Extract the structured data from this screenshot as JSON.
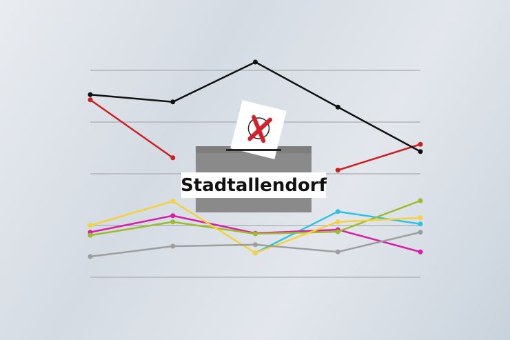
{
  "chart_data": {
    "type": "line",
    "x": [
      1,
      2,
      3,
      4,
      5
    ],
    "ylim": [
      0,
      4
    ],
    "grid": true,
    "series": [
      {
        "color": "#111111",
        "values": [
          3.53,
          3.39,
          4.16,
          3.29,
          2.43
        ]
      },
      {
        "color": "#cc1f1f",
        "values": [
          3.43,
          2.31,
          null,
          2.07,
          2.57
        ]
      },
      {
        "color": "#9e9e9e",
        "values": [
          0.4,
          0.6,
          0.63,
          0.49,
          0.87
        ]
      },
      {
        "color": "#f5d13c",
        "values": [
          1.0,
          1.47,
          0.47,
          1.07,
          1.15
        ]
      },
      {
        "color": "#9dbb2a",
        "values": [
          0.81,
          1.07,
          0.84,
          0.88,
          1.48
        ]
      },
      {
        "color": "#d61fa6",
        "values": [
          0.87,
          1.19,
          0.85,
          0.92,
          0.49
        ]
      },
      {
        "color": "#2ec3e6",
        "values": [
          null,
          null,
          0.47,
          1.27,
          1.03
        ]
      }
    ]
  },
  "ballot_box": {
    "label": "Stadtallendorf",
    "mark": "X",
    "mark_color": "#d3202c"
  }
}
